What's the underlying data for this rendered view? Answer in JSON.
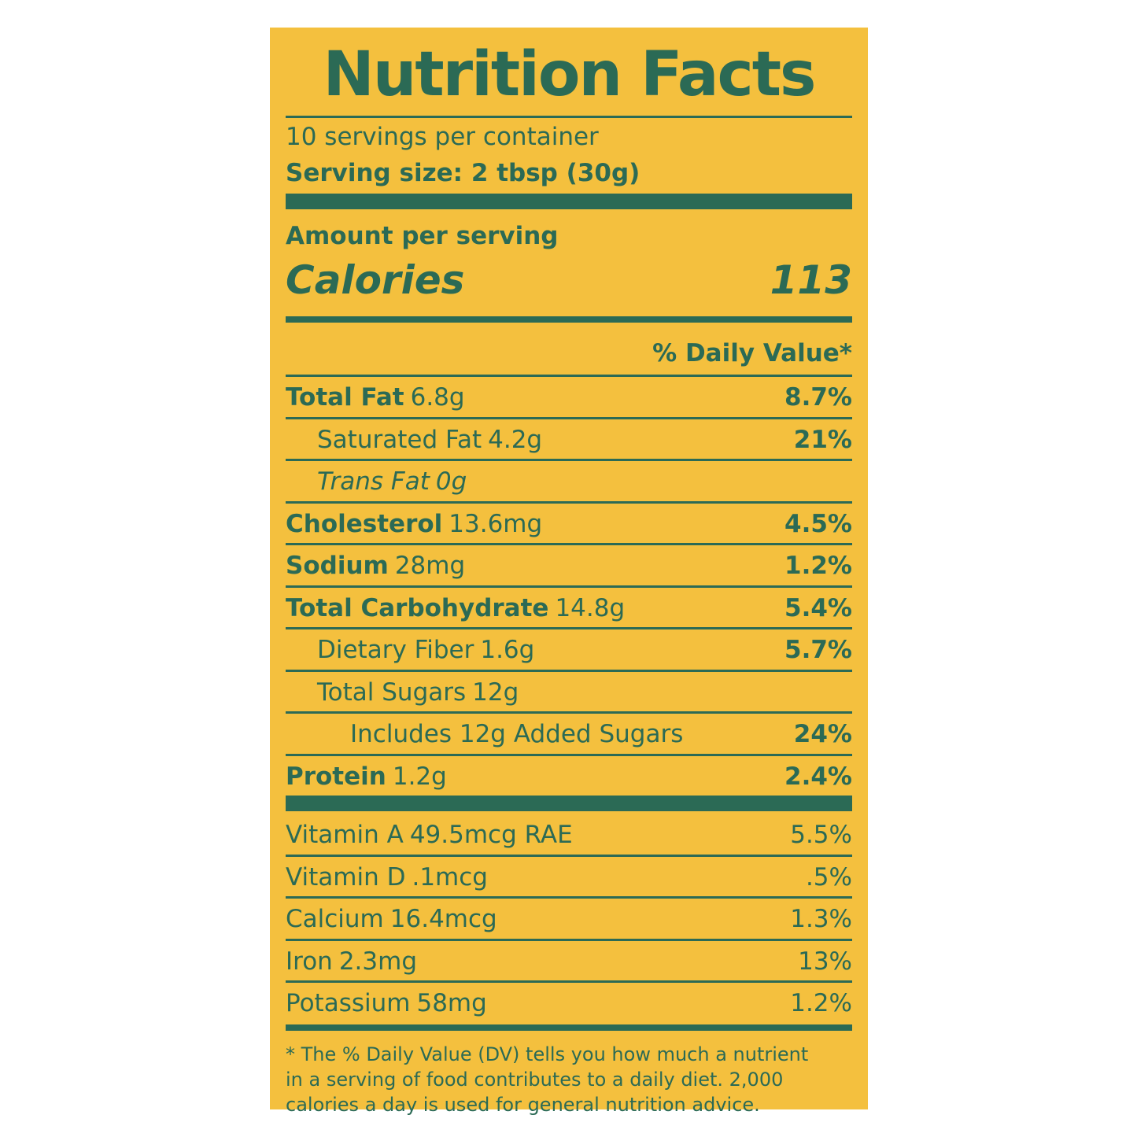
{
  "title": "Nutrition Facts",
  "servings": "10 servings per container",
  "serving_size": "Serving size: 2 tbsp (30g)",
  "amount_per_serving": "Amount per serving",
  "calories": {
    "label": "Calories",
    "value": "113"
  },
  "dv_header": "% Daily Value*",
  "nutrients": [
    {
      "name": "Total Fat",
      "amount": "6.8g",
      "dv": "8.7%"
    },
    {
      "name": "Saturated Fat",
      "amount": "4.2g",
      "dv": "21%"
    },
    {
      "name": "Trans Fat",
      "amount": "0g"
    },
    {
      "name": "Cholesterol",
      "amount": "13.6mg",
      "dv": "4.5%"
    },
    {
      "name": "Sodium",
      "amount": "28mg",
      "dv": "1.2%"
    },
    {
      "name": "Total Carbohydrate",
      "amount": "14.8g",
      "dv": "5.4%"
    },
    {
      "name": "Dietary Fiber",
      "amount": "1.6g",
      "dv": "5.7%"
    },
    {
      "name": "Total Sugars",
      "amount": "12g"
    },
    {
      "name": "Includes 12g Added Sugars",
      "dv": "24%"
    },
    {
      "name": "Protein",
      "amount": "1.2g",
      "dv": "2.4%"
    }
  ],
  "vitamins": [
    {
      "name": "Vitamin A",
      "amount": "49.5mcg RAE",
      "dv": "5.5%"
    },
    {
      "name": "Vitamin D",
      "amount": ".1mcg",
      "dv": ".5%"
    },
    {
      "name": "Calcium",
      "amount": "16.4mcg",
      "dv": "1.3%"
    },
    {
      "name": "Iron",
      "amount": "2.3mg",
      "dv": "13%"
    },
    {
      "name": "Potassium",
      "amount": "58mg",
      "dv": "1.2%"
    }
  ],
  "footnote": [
    "* The % Daily Value (DV) tells you how much a nutrient",
    "in a serving of food contributes to a daily diet. 2,000",
    "calories a day is used for general nutrition advice."
  ]
}
